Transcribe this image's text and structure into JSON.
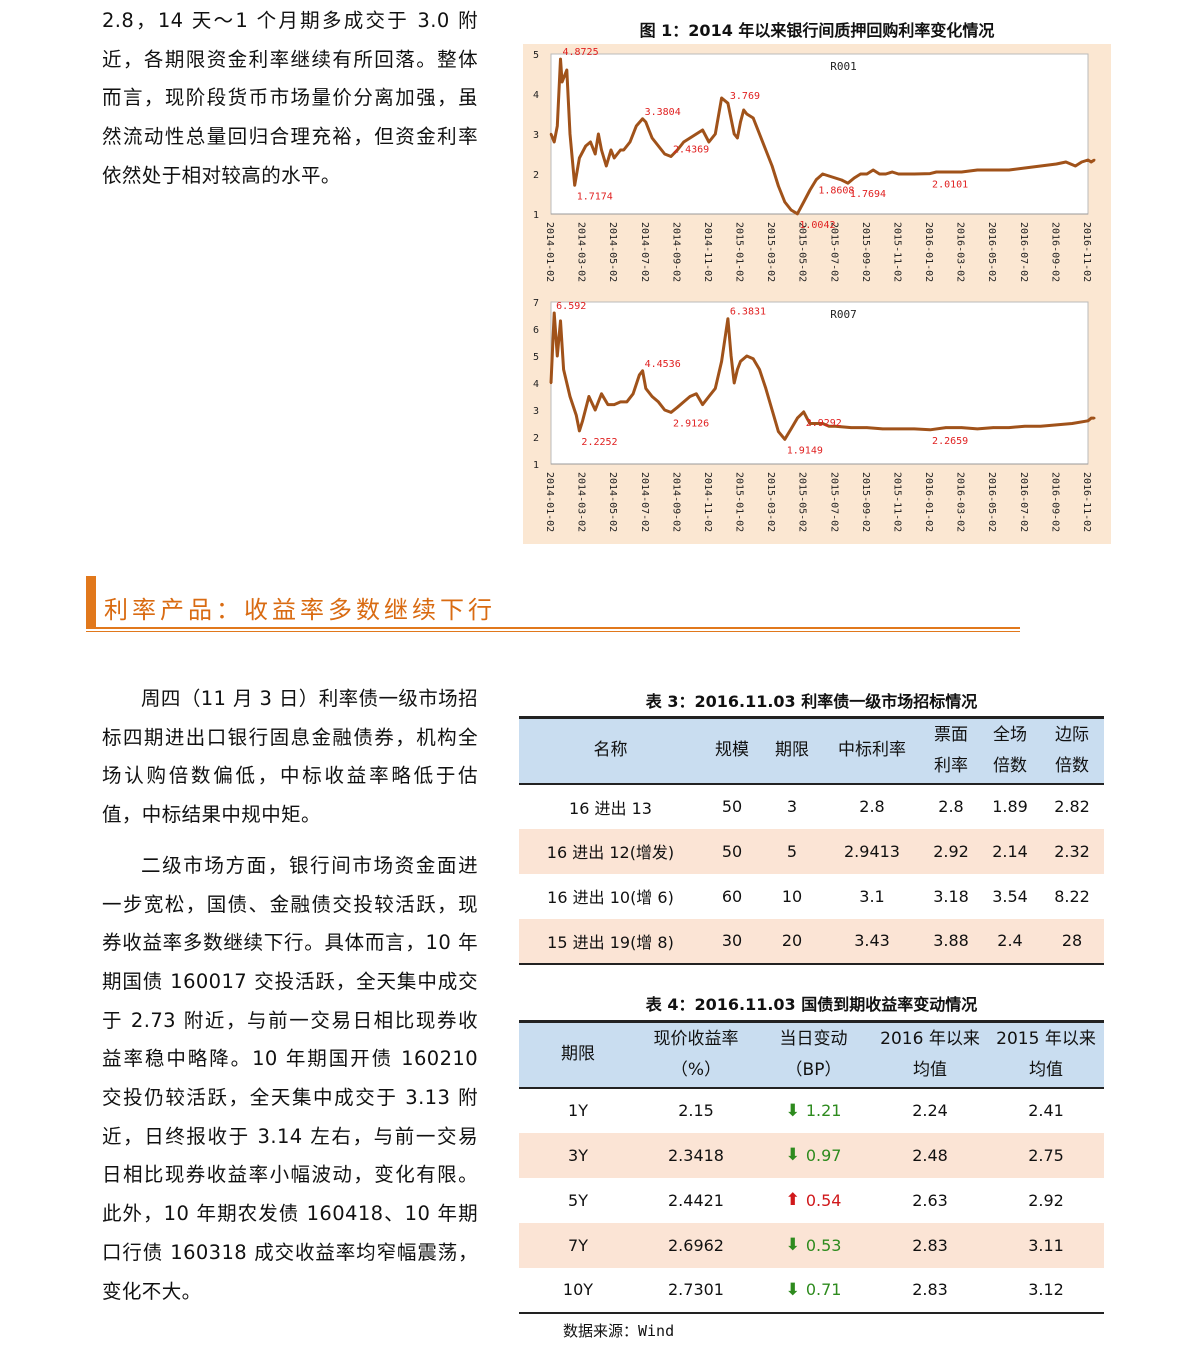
{
  "top_paragraph": "2.8，14 天～1 个月期多成交于 3.0 附近，各期限资金利率继续有所回落。整体而言，现阶段货币市场量价分离加强，虽然流动性总量回归合理充裕，但资金利率依然处于相对较高的水平。",
  "figure": {
    "title": "图 1：2014 年以来银行间质押回购利率变化情况"
  },
  "chart_data": [
    {
      "type": "line",
      "title": "R001",
      "ylim": [
        1,
        5
      ],
      "yticks": [
        "1",
        "2",
        "3",
        "4",
        "5"
      ],
      "xticks": [
        "2014-01-02",
        "2014-03-02",
        "2014-05-02",
        "2014-07-02",
        "2014-09-02",
        "2014-11-02",
        "2015-01-02",
        "2015-03-02",
        "2015-05-02",
        "2015-07-02",
        "2015-09-02",
        "2015-11-02",
        "2016-01-02",
        "2016-03-02",
        "2016-05-02",
        "2016-07-02",
        "2016-09-02",
        "2016-11-02"
      ],
      "color": "#a0521a",
      "x": [
        0,
        0.1,
        0.2,
        0.3,
        0.35,
        0.5,
        0.6,
        0.75,
        0.9,
        1.1,
        1.25,
        1.4,
        1.5,
        1.6,
        1.75,
        1.9,
        2.0,
        2.1,
        2.2,
        2.3,
        2.5,
        2.7,
        2.9,
        3.0,
        3.1,
        3.2,
        3.4,
        3.6,
        3.8,
        4.0,
        4.2,
        4.4,
        4.6,
        4.8,
        5.0,
        5.2,
        5.4,
        5.6,
        5.8,
        5.9,
        6.0,
        6.1,
        6.2,
        6.4,
        6.6,
        6.8,
        7.0,
        7.2,
        7.4,
        7.6,
        7.8,
        8.0,
        8.2,
        8.4,
        8.6,
        8.8,
        9.0,
        9.2,
        9.4,
        9.6,
        9.8,
        10.0,
        10.2,
        10.4,
        10.6,
        10.8,
        11.0,
        11.5,
        12.0,
        12.2,
        12.5,
        13.0,
        13.5,
        14.0,
        14.5,
        15.0,
        15.5,
        16.0,
        16.3,
        16.6,
        16.8,
        17.0,
        17.1,
        17.2
      ],
      "values": [
        3.0,
        2.8,
        3.2,
        4.8725,
        4.3,
        4.6,
        3.0,
        1.7174,
        2.4,
        2.7,
        2.8,
        2.5,
        3.0,
        2.6,
        2.2,
        2.6,
        2.4,
        2.5,
        2.6,
        2.6,
        2.8,
        3.2,
        3.3804,
        3.3,
        3.1,
        2.9,
        2.7,
        2.5,
        2.4369,
        2.6,
        2.8,
        2.9,
        3.0,
        3.1,
        2.8,
        3.0,
        3.9,
        3.769,
        3.0,
        2.9,
        3.3,
        3.6,
        3.5,
        3.4,
        3.0,
        2.6,
        2.2,
        1.7,
        1.3,
        1.1,
        1.0042,
        1.3,
        1.6,
        1.8608,
        2.0,
        1.95,
        1.9,
        1.85,
        1.7694,
        1.9,
        2.0,
        2.0,
        2.1,
        2.0,
        2.0,
        2.05,
        2.0,
        2.0,
        2.0101,
        2.05,
        2.05,
        2.05,
        2.1,
        2.1,
        2.1,
        2.15,
        2.2,
        2.25,
        2.3,
        2.2,
        2.3,
        2.35,
        2.3,
        2.35
      ],
      "annotations": [
        {
          "label": "4.8725",
          "x": 0.3,
          "y": 4.8725
        },
        {
          "label": "1.7174",
          "x": 0.75,
          "y": 1.7174
        },
        {
          "label": "3.3804",
          "x": 2.9,
          "y": 3.3804
        },
        {
          "label": "2.4369",
          "x": 3.8,
          "y": 2.4369
        },
        {
          "label": "3.769",
          "x": 5.6,
          "y": 3.769
        },
        {
          "label": "1.0042",
          "x": 7.8,
          "y": 1.0042
        },
        {
          "label": "1.8608",
          "x": 8.4,
          "y": 1.8608
        },
        {
          "label": "1.7694",
          "x": 9.4,
          "y": 1.7694
        },
        {
          "label": "2.0101",
          "x": 12.0,
          "y": 2.0101
        }
      ]
    },
    {
      "type": "line",
      "title": "R007",
      "ylim": [
        1,
        7
      ],
      "yticks": [
        "1",
        "2",
        "3",
        "4",
        "5",
        "6",
        "7"
      ],
      "xticks": [
        "2014-01-02",
        "2014-03-02",
        "2014-05-02",
        "2014-07-02",
        "2014-09-02",
        "2014-11-02",
        "2015-01-02",
        "2015-03-02",
        "2015-05-02",
        "2015-07-02",
        "2015-09-02",
        "2015-11-02",
        "2016-01-02",
        "2016-03-02",
        "2016-05-02",
        "2016-07-02",
        "2016-09-02",
        "2016-11-02"
      ],
      "color": "#a0521a",
      "x": [
        0,
        0.1,
        0.2,
        0.3,
        0.4,
        0.5,
        0.6,
        0.8,
        0.9,
        1.0,
        1.2,
        1.4,
        1.6,
        1.8,
        2.0,
        2.2,
        2.4,
        2.6,
        2.8,
        2.9,
        3.0,
        3.2,
        3.4,
        3.6,
        3.8,
        4.0,
        4.2,
        4.4,
        4.6,
        4.8,
        5.0,
        5.2,
        5.4,
        5.6,
        5.7,
        5.8,
        5.9,
        6.0,
        6.2,
        6.4,
        6.6,
        6.8,
        7.0,
        7.2,
        7.4,
        7.6,
        7.8,
        8.0,
        8.1,
        8.2,
        8.4,
        8.6,
        8.8,
        9.0,
        9.5,
        10.0,
        10.5,
        11.0,
        11.5,
        12.0,
        12.5,
        13.0,
        13.5,
        14.0,
        14.5,
        15.0,
        15.5,
        16.0,
        16.5,
        17.0,
        17.1,
        17.2
      ],
      "values": [
        4.0,
        6.592,
        5.0,
        6.3,
        4.5,
        4.0,
        3.5,
        2.8,
        2.2252,
        2.6,
        3.5,
        3.0,
        3.6,
        3.2,
        3.2,
        3.3,
        3.3,
        3.6,
        4.3,
        4.4536,
        3.8,
        3.5,
        3.3,
        3.0,
        2.9126,
        3.1,
        3.3,
        3.5,
        3.6,
        3.2,
        3.5,
        3.8,
        4.8,
        6.3831,
        5.0,
        4.0,
        4.5,
        4.8,
        5.0,
        4.9,
        4.5,
        3.8,
        3.0,
        2.2,
        1.9149,
        2.3,
        2.7,
        2.9292,
        2.7,
        2.5,
        2.5,
        2.5,
        2.4,
        2.4,
        2.35,
        2.35,
        2.3,
        2.3,
        2.3,
        2.2659,
        2.35,
        2.35,
        2.3,
        2.35,
        2.35,
        2.4,
        2.4,
        2.45,
        2.5,
        2.6,
        2.7,
        2.7
      ],
      "annotations": [
        {
          "label": "6.592",
          "x": 0.1,
          "y": 6.592
        },
        {
          "label": "2.2252",
          "x": 0.9,
          "y": 2.2252
        },
        {
          "label": "4.4536",
          "x": 2.9,
          "y": 4.4536
        },
        {
          "label": "2.9126",
          "x": 3.8,
          "y": 2.9126
        },
        {
          "label": "6.3831",
          "x": 5.6,
          "y": 6.3831
        },
        {
          "label": "1.9149",
          "x": 7.4,
          "y": 1.9149
        },
        {
          "label": "2.9292",
          "x": 8.0,
          "y": 2.9292
        },
        {
          "label": "2.2659",
          "x": 12.0,
          "y": 2.2659
        }
      ]
    }
  ],
  "section": {
    "title": "利率产品：收益率多数继续下行"
  },
  "paragraph1": "周四（11 月 3 日）利率债一级市场招标四期进出口银行固息金融债券，机构全场认购倍数偏低，中标收益率略低于估值，中标结果中规中矩。",
  "paragraph2": "二级市场方面，银行间市场资金面进一步宽松，国债、金融债交投较活跃，现券收益率多数继续下行。具体而言，10 年期国债 160017 交投活跃，全天集中成交于 2.73 附近，与前一交易日相比现券收益率稳中略降。10 年期国开债 160210 交投仍较活跃，全天集中成交于 3.13 附近，日终报收于 3.14 左右，与前一交易日相比现券收益率小幅波动，变化有限。此外，10 年期农发债 160418、10 年期口行债 160318 成交收益率均窄幅震荡，变化不大。",
  "table3": {
    "title": "表 3：2016.11.03 利率债一级市场招标情况",
    "headers": [
      {
        "line1": "名称",
        "line2": ""
      },
      {
        "line1": "规模",
        "line2": ""
      },
      {
        "line1": "期限",
        "line2": ""
      },
      {
        "line1": "中标利率",
        "line2": ""
      },
      {
        "line1": "票面",
        "line2": "利率"
      },
      {
        "line1": "全场",
        "line2": "倍数"
      },
      {
        "line1": "边际",
        "line2": "倍数"
      }
    ],
    "rows": [
      [
        "16 进出 13",
        "50",
        "3",
        "2.8",
        "2.8",
        "1.89",
        "2.82"
      ],
      [
        "16 进出 12(增发)",
        "50",
        "5",
        "2.9413",
        "2.92",
        "2.14",
        "2.32"
      ],
      [
        "16 进出 10(增 6)",
        "60",
        "10",
        "3.1",
        "3.18",
        "3.54",
        "8.22"
      ],
      [
        "15 进出 19(增 8)",
        "30",
        "20",
        "3.43",
        "3.88",
        "2.4",
        "28"
      ]
    ]
  },
  "table4": {
    "title": "表 4：2016.11.03 国债到期收益率变动情况",
    "headers": [
      {
        "line1": "期限",
        "line2": ""
      },
      {
        "line1": "现价收益率",
        "line2": "（%）"
      },
      {
        "line1": "当日变动",
        "line2": "（BP）"
      },
      {
        "line1": "2016 年以来",
        "line2": "均值"
      },
      {
        "line1": "2015 年以来",
        "line2": "均值"
      }
    ],
    "rows": [
      {
        "term": "1Y",
        "yield": "2.15",
        "dir": "down",
        "change": "1.21",
        "avg2016": "2.24",
        "avg2015": "2.41"
      },
      {
        "term": "3Y",
        "yield": "2.3418",
        "dir": "down",
        "change": "0.97",
        "avg2016": "2.48",
        "avg2015": "2.75"
      },
      {
        "term": "5Y",
        "yield": "2.4421",
        "dir": "up",
        "change": "0.54",
        "avg2016": "2.63",
        "avg2015": "2.92"
      },
      {
        "term": "7Y",
        "yield": "2.6962",
        "dir": "down",
        "change": "0.53",
        "avg2016": "2.83",
        "avg2015": "3.11"
      },
      {
        "term": "10Y",
        "yield": "2.7301",
        "dir": "down",
        "change": "0.71",
        "avg2016": "2.83",
        "avg2015": "3.12"
      }
    ],
    "colors": {
      "down": "#2e8b1e",
      "up": "#d0181b"
    },
    "arrows": {
      "down": "⬇",
      "up": "⬆"
    }
  },
  "source": "数据来源：Wind"
}
